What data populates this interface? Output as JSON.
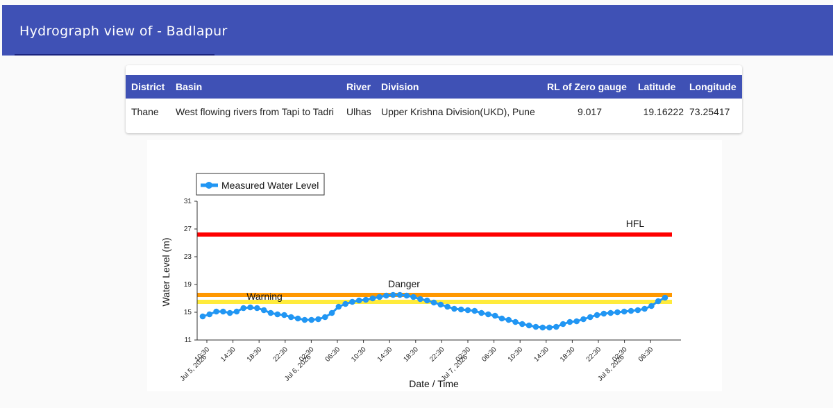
{
  "header": {
    "title": "Hydrograph view of - Badlapur"
  },
  "info_table": {
    "columns": [
      "District",
      "Basin",
      "River",
      "Division",
      "RL of Zero gauge",
      "Latitude",
      "Longitude"
    ],
    "row": [
      "Thane",
      "West flowing rivers from Tapi to Tadri",
      "Ulhas",
      "Upper Krishna Division(UKD), Pune",
      "9.017",
      "19.16222",
      "73.25417"
    ]
  },
  "colors": {
    "header_bg": "#3f51b5",
    "series": "#2196f3",
    "hfl": "#ff0000",
    "danger": "#ff9800",
    "warning": "#ffeb3b"
  },
  "chart_data": {
    "type": "line",
    "xlabel": "Date / Time",
    "ylabel": "Water Level (m)",
    "ylim": [
      11,
      31
    ],
    "yticks": [
      "11",
      "15",
      "19",
      "23",
      "27",
      "31"
    ],
    "x_tick_labels": [
      [
        "10:30",
        "Jul 5, 2026"
      ],
      [
        "14:30"
      ],
      [
        "18:30"
      ],
      [
        "22:30"
      ],
      [
        "02:30",
        "Jul 6, 2026"
      ],
      [
        "06:30"
      ],
      [
        "10:30"
      ],
      [
        "14:30"
      ],
      [
        "18:30"
      ],
      [
        "22:30"
      ],
      [
        "02:30",
        "Jul 7, 2026"
      ],
      [
        "06:30"
      ],
      [
        "10:30"
      ],
      [
        "14:30"
      ],
      [
        "18:30"
      ],
      [
        "22:30"
      ],
      [
        "02:30",
        "Jul 8, 2026"
      ],
      [
        "06:30"
      ]
    ],
    "legend": {
      "position": "top-left",
      "entries": [
        "Measured Water Level"
      ]
    },
    "thresholds": [
      {
        "label": "HFL",
        "value": 26.2
      },
      {
        "label": "Danger",
        "value": 17.5
      },
      {
        "label": "Warning",
        "value": 16.5
      }
    ],
    "series": [
      {
        "name": "Measured Water Level",
        "values": [
          14.4,
          14.7,
          15.1,
          15.1,
          14.9,
          15.1,
          15.6,
          15.7,
          15.6,
          15.3,
          14.9,
          14.7,
          14.6,
          14.3,
          14.1,
          13.9,
          13.9,
          14.0,
          14.3,
          14.9,
          15.8,
          16.2,
          16.5,
          16.7,
          16.8,
          17.0,
          17.2,
          17.4,
          17.5,
          17.5,
          17.4,
          17.2,
          16.9,
          16.7,
          16.4,
          16.1,
          15.8,
          15.5,
          15.4,
          15.3,
          15.2,
          14.9,
          14.7,
          14.5,
          14.1,
          13.9,
          13.6,
          13.3,
          13.1,
          12.9,
          12.8,
          12.8,
          12.9,
          13.3,
          13.6,
          13.7,
          14.0,
          14.3,
          14.6,
          14.8,
          14.9,
          15.0,
          15.1,
          15.2,
          15.3,
          15.5,
          15.9,
          16.6,
          17.1
        ]
      }
    ]
  }
}
